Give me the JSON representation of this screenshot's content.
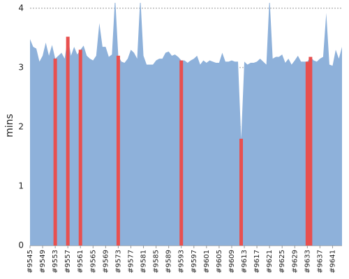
{
  "chart_data": {
    "type": "area",
    "ylabel": "mins",
    "ylim": [
      0,
      4.08
    ],
    "yticks": [
      0,
      1,
      2,
      3,
      4
    ],
    "grid": true,
    "xlim": [
      9545,
      9644
    ],
    "xticks": [
      {
        "value": 9545,
        "label": "#9545"
      },
      {
        "value": 9549,
        "label": "#9549"
      },
      {
        "value": 9553,
        "label": "#9553"
      },
      {
        "value": 9557,
        "label": "#9557"
      },
      {
        "value": 9561,
        "label": "#9561"
      },
      {
        "value": 9565,
        "label": "#9565"
      },
      {
        "value": 9569,
        "label": "#9569"
      },
      {
        "value": 9573,
        "label": "#9573"
      },
      {
        "value": 9577,
        "label": "#9577"
      },
      {
        "value": 9581,
        "label": "#9581"
      },
      {
        "value": 9585,
        "label": "#9585"
      },
      {
        "value": 9589,
        "label": "#9589"
      },
      {
        "value": 9593,
        "label": "#9593"
      },
      {
        "value": 9597,
        "label": "#9597"
      },
      {
        "value": 9601,
        "label": "#9601"
      },
      {
        "value": 9605,
        "label": "#9605"
      },
      {
        "value": 9609,
        "label": "#9609"
      },
      {
        "value": 9613,
        "label": "#9613"
      },
      {
        "value": 9617,
        "label": "#9617"
      },
      {
        "value": 9621,
        "label": "#9621"
      },
      {
        "value": 9625,
        "label": "#9625"
      },
      {
        "value": 9629,
        "label": "#9629"
      },
      {
        "value": 9633,
        "label": "#9633"
      },
      {
        "value": 9637,
        "label": "#9637"
      },
      {
        "value": 9641,
        "label": "#9641"
      }
    ],
    "x": [
      9545,
      9546,
      9547,
      9548,
      9549,
      9550,
      9551,
      9552,
      9553,
      9554,
      9555,
      9556,
      9557,
      9558,
      9559,
      9560,
      9561,
      9562,
      9563,
      9564,
      9565,
      9566,
      9567,
      9568,
      9569,
      9570,
      9571,
      9572,
      9573,
      9574,
      9575,
      9576,
      9577,
      9578,
      9579,
      9580,
      9581,
      9582,
      9583,
      9584,
      9585,
      9586,
      9587,
      9588,
      9589,
      9590,
      9591,
      9592,
      9593,
      9594,
      9595,
      9596,
      9597,
      9598,
      9599,
      9600,
      9601,
      9602,
      9603,
      9604,
      9605,
      9606,
      9607,
      9608,
      9609,
      9610,
      9611,
      9612,
      9613,
      9614,
      9615,
      9616,
      9617,
      9618,
      9619,
      9620,
      9621,
      9622,
      9623,
      9624,
      9625,
      9626,
      9627,
      9628,
      9629,
      9630,
      9631,
      9632,
      9633,
      9634,
      9635,
      9636,
      9637,
      9638,
      9639,
      9640,
      9641,
      9642,
      9643,
      9644
    ],
    "series": [
      {
        "color": "#8eb1da",
        "values": [
          3.48,
          3.35,
          3.32,
          3.1,
          3.2,
          3.42,
          3.2,
          3.38,
          3.15,
          3.2,
          3.25,
          3.15,
          3.52,
          3.2,
          3.35,
          3.22,
          3.3,
          3.37,
          3.2,
          3.15,
          3.12,
          3.2,
          3.75,
          3.35,
          3.35,
          3.18,
          3.22,
          4.2,
          3.2,
          3.1,
          3.08,
          3.15,
          3.3,
          3.25,
          3.15,
          4.2,
          3.2,
          3.05,
          3.05,
          3.05,
          3.12,
          3.15,
          3.15,
          3.25,
          3.27,
          3.2,
          3.22,
          3.18,
          3.12,
          3.12,
          3.08,
          3.12,
          3.15,
          3.2,
          3.05,
          3.12,
          3.08,
          3.12,
          3.1,
          3.08,
          3.08,
          3.25,
          3.1,
          3.1,
          3.12,
          3.1,
          3.1,
          1.8,
          3.1,
          3.05,
          3.08,
          3.08,
          3.1,
          3.15,
          3.1,
          3.05,
          4.2,
          3.15,
          3.18,
          3.18,
          3.22,
          3.08,
          3.15,
          3.05,
          3.12,
          3.2,
          3.1,
          3.1,
          3.1,
          3.18,
          3.12,
          3.1,
          3.15,
          3.18,
          3.92,
          3.05,
          3.03,
          3.3,
          3.15,
          3.35
        ]
      }
    ],
    "highlight": {
      "color": "#e8504f",
      "x": [
        9553,
        9557,
        9561,
        9573,
        9593,
        9612,
        9633,
        9634
      ]
    }
  }
}
